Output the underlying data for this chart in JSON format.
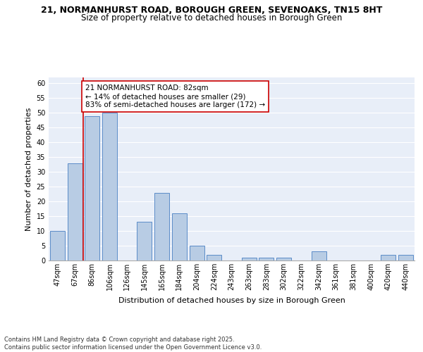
{
  "title_line1": "21, NORMANHURST ROAD, BOROUGH GREEN, SEVENOAKS, TN15 8HT",
  "title_line2": "Size of property relative to detached houses in Borough Green",
  "xlabel": "Distribution of detached houses by size in Borough Green",
  "ylabel": "Number of detached properties",
  "categories": [
    "47sqm",
    "67sqm",
    "86sqm",
    "106sqm",
    "126sqm",
    "145sqm",
    "165sqm",
    "184sqm",
    "204sqm",
    "224sqm",
    "243sqm",
    "263sqm",
    "283sqm",
    "302sqm",
    "322sqm",
    "342sqm",
    "361sqm",
    "381sqm",
    "400sqm",
    "420sqm",
    "440sqm"
  ],
  "values": [
    10,
    33,
    49,
    50,
    0,
    13,
    23,
    16,
    5,
    2,
    0,
    1,
    1,
    1,
    0,
    3,
    0,
    0,
    0,
    2,
    2
  ],
  "bar_color": "#b8cce4",
  "bar_edge_color": "#5b8cc8",
  "bar_width": 0.85,
  "ylim": [
    0,
    62
  ],
  "yticks": [
    0,
    5,
    10,
    15,
    20,
    25,
    30,
    35,
    40,
    45,
    50,
    55,
    60
  ],
  "vline_color": "#cc0000",
  "annotation_text": "21 NORMANHURST ROAD: 82sqm\n← 14% of detached houses are smaller (29)\n83% of semi-detached houses are larger (172) →",
  "annotation_box_color": "#ffffff",
  "annotation_box_edge": "#cc0000",
  "background_color": "#e8eef8",
  "grid_color": "#ffffff",
  "footer_text": "Contains HM Land Registry data © Crown copyright and database right 2025.\nContains public sector information licensed under the Open Government Licence v3.0.",
  "title_fontsize": 9,
  "subtitle_fontsize": 8.5,
  "axis_label_fontsize": 8,
  "tick_fontsize": 7,
  "annotation_fontsize": 7.5,
  "footer_fontsize": 6
}
